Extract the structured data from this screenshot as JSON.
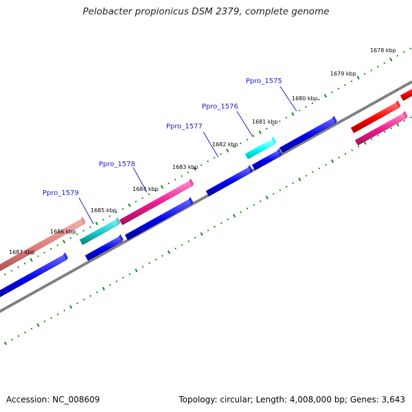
{
  "title": "Pelobacter propionicus DSM 2379, complete genome",
  "footer": {
    "accession": "Accession: NC_008609",
    "stats": "Topology: circular; Length: 4,008,000 bp; Genes: 3,643"
  },
  "scale": {
    "ticks": [
      "1678 kbp",
      "1679 kbp",
      "1680 kbp",
      "1681 kbp",
      "1682 kbp",
      "1683 kbp",
      "1684 kbp",
      "1685 kbp",
      "1686 kbp",
      "1687 kbp"
    ]
  },
  "gene_labels": [
    "Ppro_1575",
    "Ppro_1576",
    "Ppro_1577",
    "Ppro_1578",
    "Ppro_1579"
  ],
  "colors": {
    "backbone": "#808080",
    "tick": "#0a8a0a",
    "cds_blue": "#0000ee",
    "gene_red": "#ff0000",
    "gene_pink": "#ee1a8e",
    "gene_salmon": "#e07878",
    "gene_teal": "#18c8c8",
    "gene_cyan": "#00ffff",
    "label_text": "#1a1acc"
  }
}
